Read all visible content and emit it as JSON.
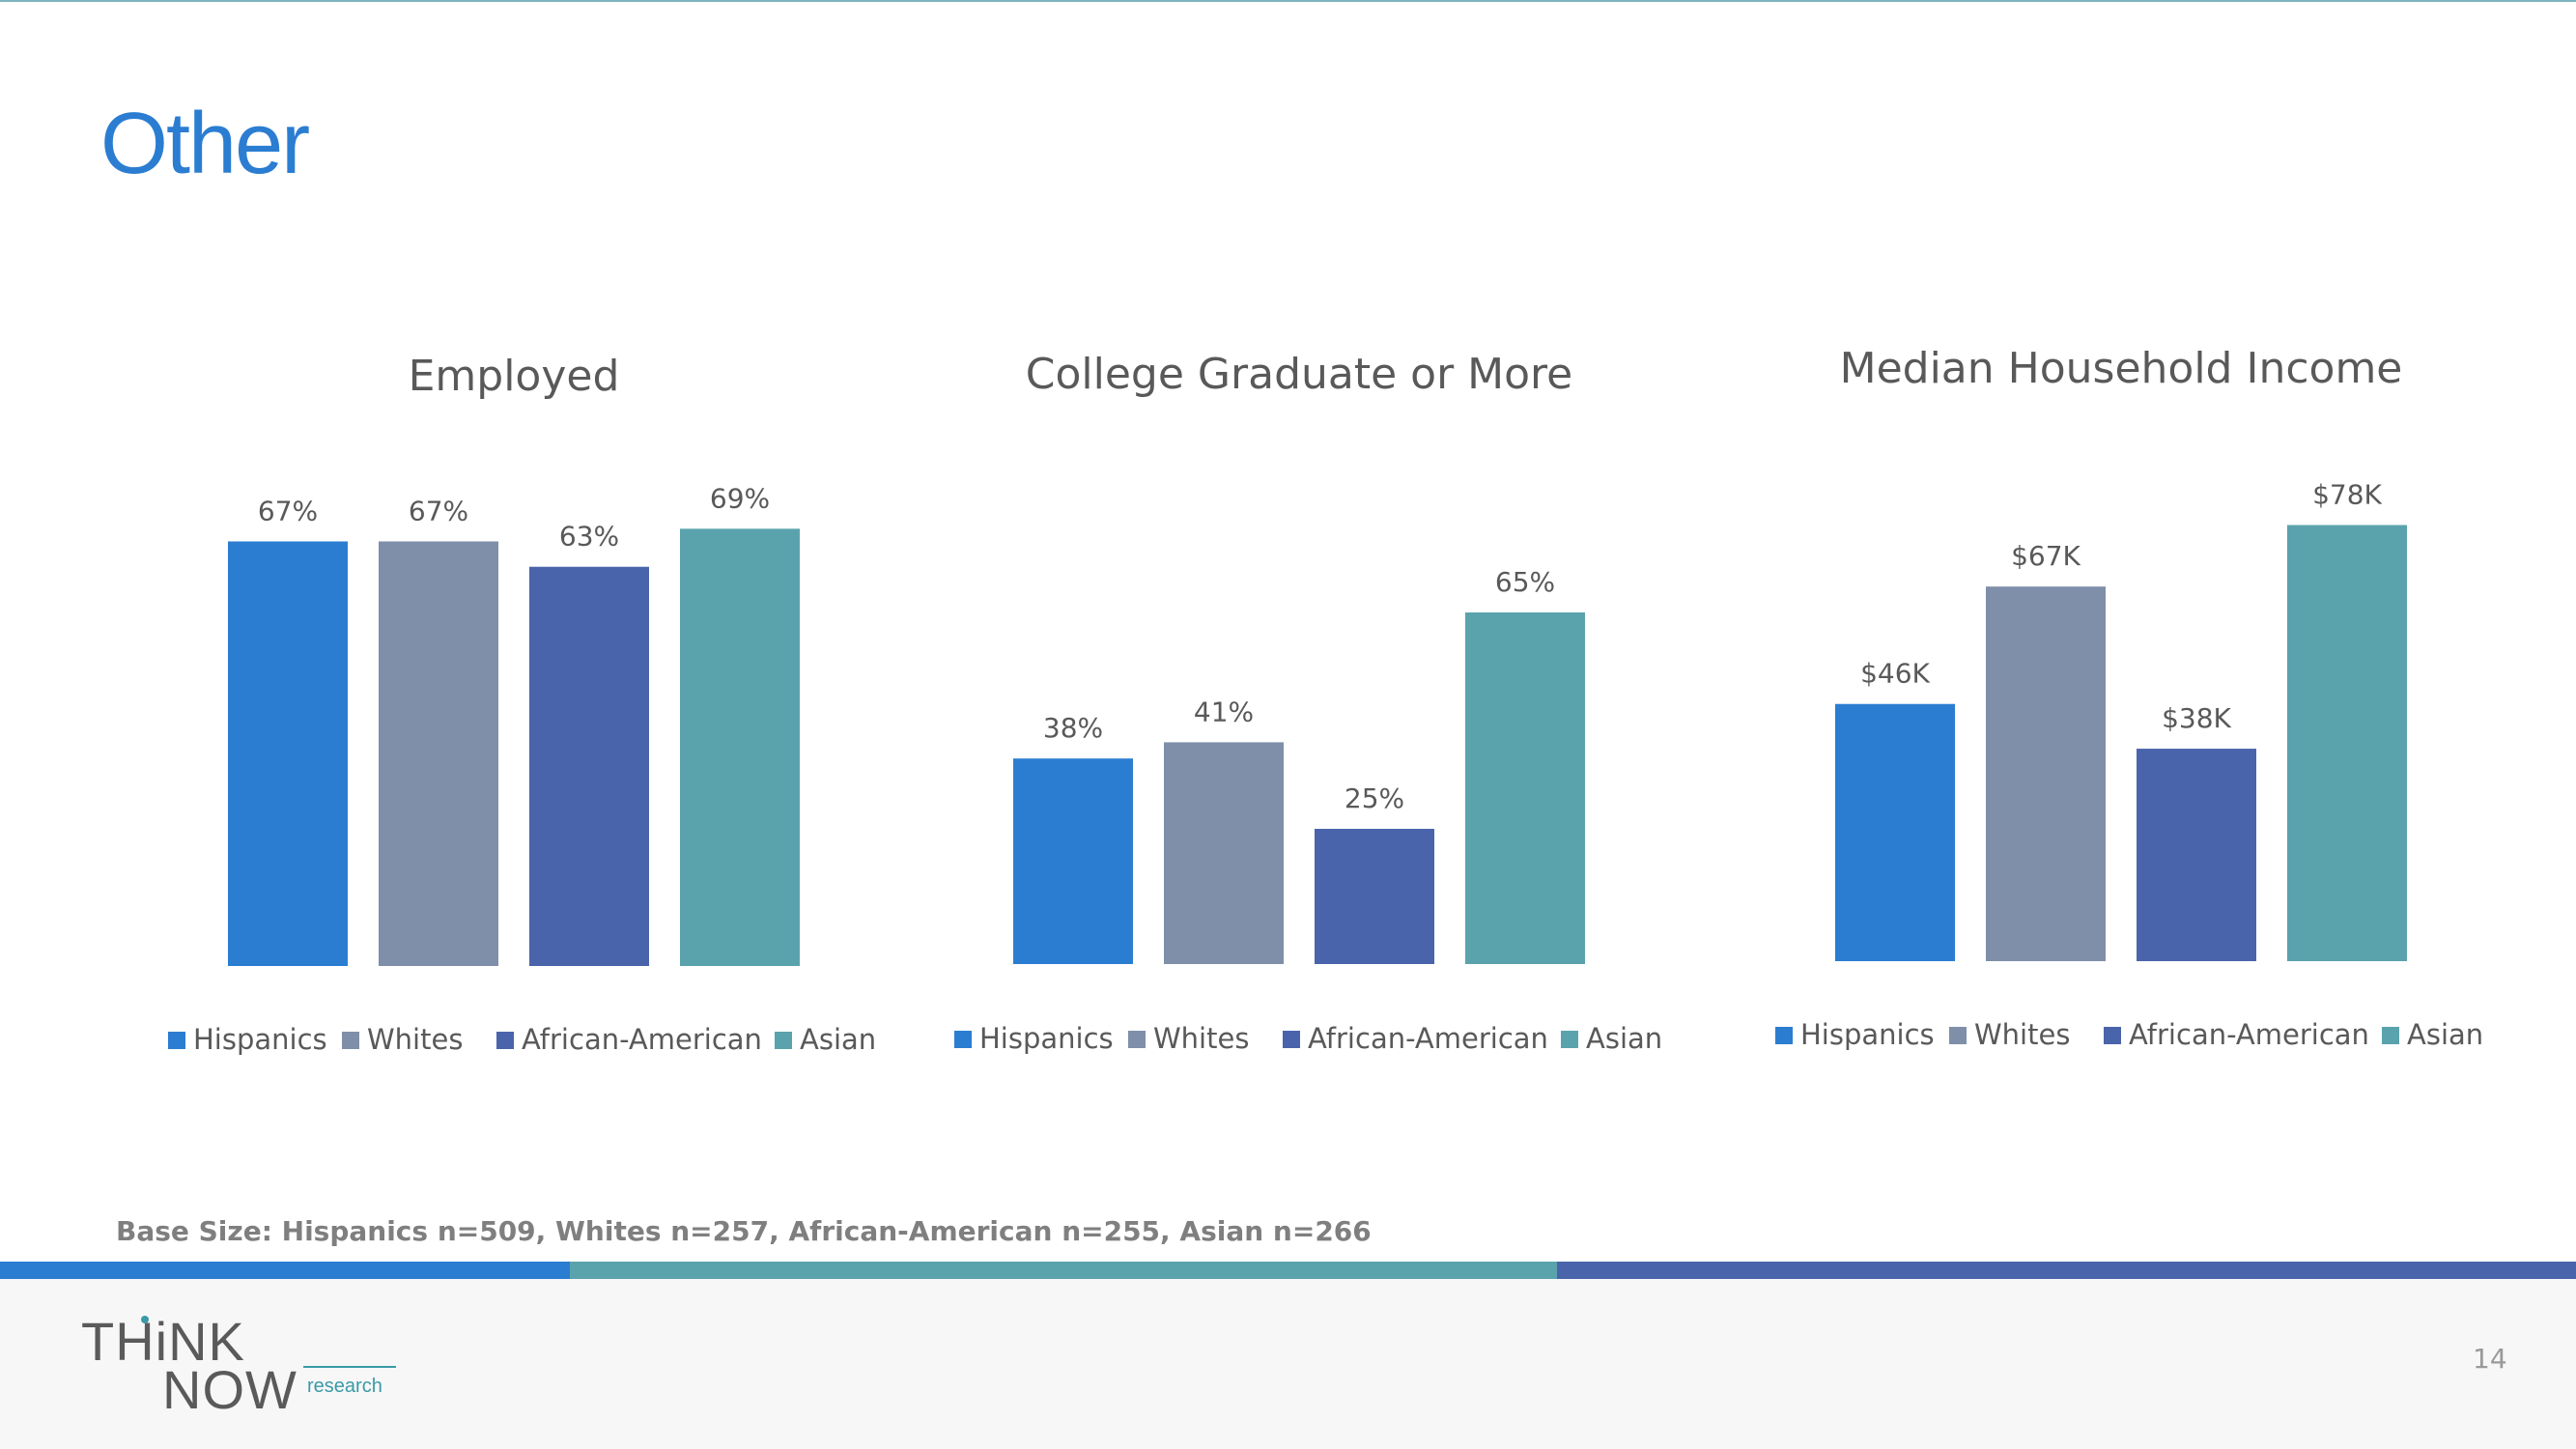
{
  "page": {
    "title": "Other",
    "base_note": "Base Size: Hispanics n=509, Whites n=257, African-American n=255, Asian n=266",
    "page_number": "14",
    "logo": {
      "line1": "THiNK",
      "line2": "NOW",
      "tag": "research"
    }
  },
  "colors": {
    "title": "#2b7dd1",
    "stripe": [
      "#2b7dd1",
      "#5aa3ad",
      "#4a64ab"
    ]
  },
  "chart_data": [
    {
      "type": "bar",
      "title": "Employed",
      "categories": [
        "Hispanics",
        "Whites",
        "African-American",
        "Asian"
      ],
      "values": [
        67,
        67,
        63,
        69
      ],
      "labels": [
        "67%",
        "67%",
        "63%",
        "69%"
      ],
      "colors": [
        "#2b7dd1",
        "#7f8fa9",
        "#4a64ab",
        "#5aa3ad"
      ],
      "ylim": [
        0,
        75
      ],
      "legend": "bottom"
    },
    {
      "type": "bar",
      "title": "College Graduate or More",
      "categories": [
        "Hispanics",
        "Whites",
        "African-American",
        "Asian"
      ],
      "values": [
        38,
        41,
        25,
        65
      ],
      "labels": [
        "38%",
        "41%",
        "25%",
        "65%"
      ],
      "colors": [
        "#2b7dd1",
        "#7f8fa9",
        "#4a64ab",
        "#5aa3ad"
      ],
      "ylim": [
        0,
        75
      ],
      "legend": "bottom"
    },
    {
      "type": "bar",
      "title": "Median Household Income",
      "categories": [
        "Hispanics",
        "Whites",
        "African-American",
        "Asian"
      ],
      "values": [
        46,
        67,
        38,
        78
      ],
      "labels": [
        "$46K",
        "$67K",
        "$38K",
        "$78K"
      ],
      "colors": [
        "#2b7dd1",
        "#7f8fa9",
        "#4a64ab",
        "#5aa3ad"
      ],
      "ylim": [
        0,
        85
      ],
      "legend": "bottom"
    }
  ]
}
